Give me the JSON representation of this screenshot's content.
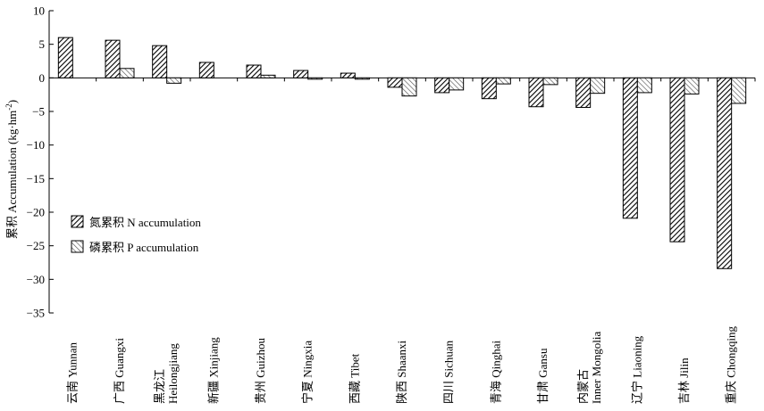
{
  "chart_data": {
    "type": "bar",
    "ylabel": "累积 Accumulation (kg·hm",
    "ylabel_sup": "-2",
    "ylabel_end": ")",
    "ylim": [
      -35,
      10
    ],
    "yticks": [
      10,
      5,
      0,
      -5,
      -10,
      -15,
      -20,
      -25,
      -30,
      -35
    ],
    "grid": false,
    "legend_position": "left-lower",
    "categories": [
      [
        "云南 Yunnan"
      ],
      [
        "广西 Guangxi"
      ],
      [
        "黑龙江",
        "Heilongjiang"
      ],
      [
        "新疆 Xinjiang"
      ],
      [
        "贵州 Guizhou"
      ],
      [
        "宁夏 Ningxia"
      ],
      [
        "西藏 Tibet"
      ],
      [
        "陕西 Shaanxi"
      ],
      [
        "四川 Sichuan"
      ],
      [
        "青海 Qinghai"
      ],
      [
        "甘肃 Gansu"
      ],
      [
        "内蒙古",
        "Inner Mongolia"
      ],
      [
        "辽宁 Liaoning"
      ],
      [
        "吉林 Jilin"
      ],
      [
        "重庆 Chongqing"
      ]
    ],
    "series": [
      {
        "name": "氮累积 N accumulation",
        "pattern": "hatch-dense",
        "values": [
          6.0,
          5.6,
          4.8,
          2.3,
          1.9,
          1.1,
          0.7,
          -1.4,
          -2.2,
          -3.1,
          -4.3,
          -4.4,
          -20.9,
          -24.4,
          -28.4
        ]
      },
      {
        "name": "磷累积 P accumulation",
        "pattern": "hatch-light",
        "values": [
          0,
          1.4,
          -0.8,
          0,
          0.4,
          -0.2,
          -0.2,
          -2.7,
          -1.8,
          -0.9,
          -1.0,
          -2.3,
          -2.2,
          -2.4,
          -3.8
        ]
      }
    ]
  }
}
